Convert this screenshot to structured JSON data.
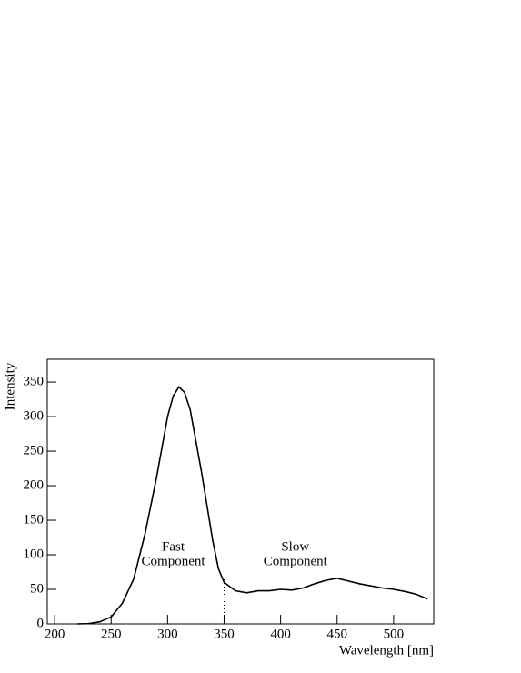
{
  "chart_data": {
    "type": "line",
    "xlabel": "Wavelength  [nm]",
    "ylabel": "Intensity",
    "x": [
      220,
      230,
      240,
      250,
      260,
      270,
      280,
      290,
      300,
      305,
      310,
      315,
      320,
      330,
      340,
      345,
      350,
      360,
      370,
      380,
      390,
      400,
      410,
      420,
      430,
      440,
      450,
      460,
      470,
      480,
      490,
      500,
      510,
      520,
      530
    ],
    "series": [
      {
        "name": "Intensity",
        "color": "#000000",
        "values": [
          0,
          0.5,
          3,
          10,
          30,
          65,
          130,
          210,
          300,
          330,
          343,
          335,
          310,
          220,
          120,
          80,
          60,
          48,
          45,
          48,
          48,
          50,
          49,
          52,
          58,
          63,
          66,
          62,
          58,
          55,
          52,
          50,
          47,
          43,
          36
        ]
      }
    ],
    "xlim": [
      193.5,
      535.5
    ],
    "xticks": [
      200,
      250,
      300,
      350,
      400,
      450,
      500
    ],
    "ylim": [
      0,
      383
    ],
    "yticks": [
      0,
      50,
      100,
      150,
      200,
      250,
      300,
      350
    ],
    "divider": 350,
    "annotations": [
      {
        "lines": [
          "Fast",
          "Component"
        ],
        "x": 305,
        "y": 100
      },
      {
        "lines": [
          "Slow",
          "Component"
        ],
        "x": 413,
        "y": 100
      }
    ]
  }
}
